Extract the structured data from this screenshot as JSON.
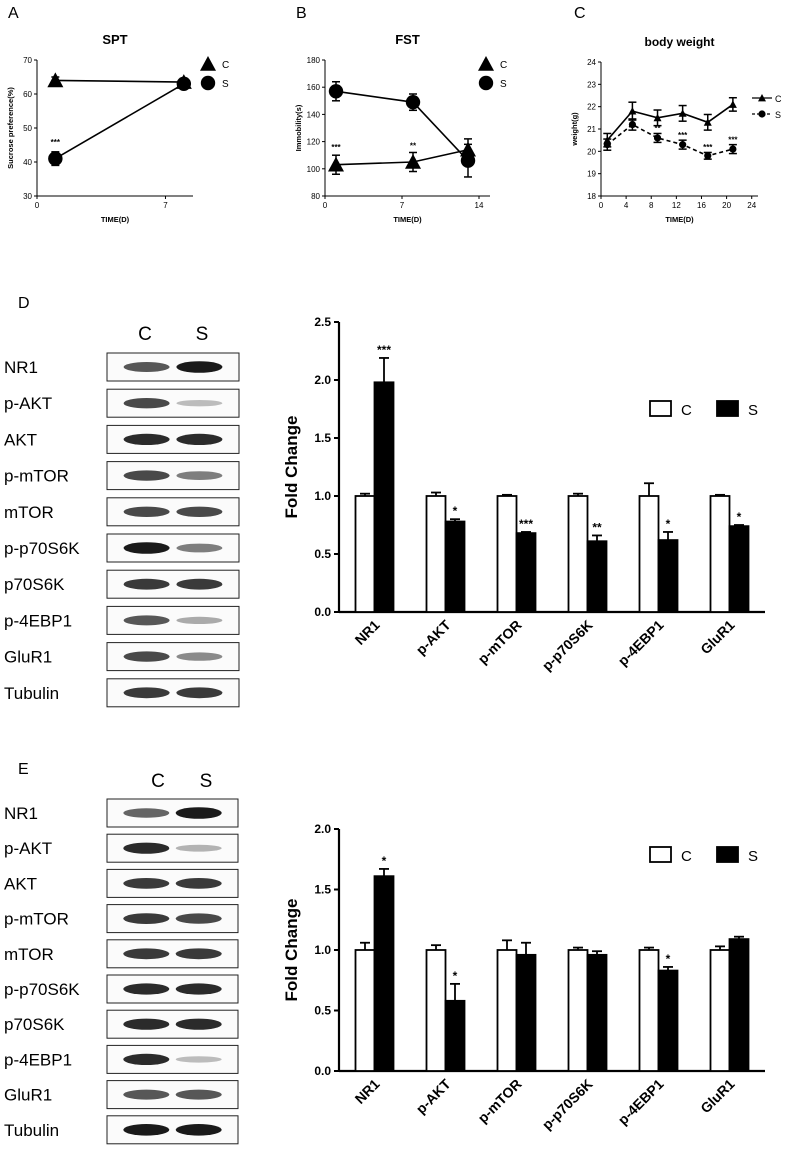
{
  "panel_letters": [
    "A",
    "B",
    "C",
    "D",
    "E"
  ],
  "chart_data": [
    {
      "id": "A",
      "type": "line",
      "title": "SPT",
      "xlabel": "TIME(D)",
      "ylabel": "Sucrose preference(%)",
      "xlim": [
        0,
        8.5
      ],
      "ylim": [
        30,
        70
      ],
      "xticks": [
        0,
        7
      ],
      "yticks": [
        30,
        40,
        50,
        60,
        70
      ],
      "legend": "top-right",
      "series": [
        {
          "name": "C",
          "marker": "triangle",
          "x": [
            1,
            8
          ],
          "y": [
            64,
            63.5
          ],
          "err": [
            1,
            1
          ]
        },
        {
          "name": "S",
          "marker": "circle",
          "x": [
            1,
            8
          ],
          "y": [
            41,
            63
          ],
          "err": [
            2,
            1
          ]
        }
      ],
      "annotations": [
        {
          "text": "***",
          "x": 1,
          "y": 45
        }
      ]
    },
    {
      "id": "B",
      "type": "line",
      "title": "FST",
      "xlabel": "TIME(D)",
      "ylabel": "Immobility(s)",
      "xlim": [
        0,
        15
      ],
      "ylim": [
        80,
        180
      ],
      "xticks": [
        0,
        7,
        14
      ],
      "yticks": [
        80,
        100,
        120,
        140,
        160,
        180
      ],
      "legend": "top-right",
      "series": [
        {
          "name": "C",
          "marker": "triangle",
          "x": [
            1,
            8,
            13
          ],
          "y": [
            103,
            105,
            114
          ],
          "err": [
            7,
            7,
            8
          ]
        },
        {
          "name": "S",
          "marker": "circle",
          "x": [
            1,
            8,
            13
          ],
          "y": [
            157,
            149,
            106
          ],
          "err": [
            7,
            6,
            12
          ]
        }
      ],
      "annotations": [
        {
          "text": "***",
          "x": 1,
          "y": 114
        },
        {
          "text": "**",
          "x": 8,
          "y": 115
        }
      ]
    },
    {
      "id": "C",
      "type": "line",
      "title": "body weight",
      "xlabel": "TIME(D)",
      "ylabel": "weight(g)",
      "xlim": [
        0,
        25
      ],
      "ylim": [
        18,
        24
      ],
      "xticks": [
        0,
        4,
        8,
        12,
        16,
        20,
        24
      ],
      "yticks": [
        18,
        19,
        20,
        21,
        22,
        23,
        24
      ],
      "legend": "top-right",
      "series": [
        {
          "name": "C",
          "marker": "triangle",
          "line": "solid",
          "x": [
            1,
            5,
            9,
            13,
            17,
            21
          ],
          "y": [
            20.5,
            21.8,
            21.5,
            21.7,
            21.3,
            22.1
          ],
          "err": [
            0.3,
            0.4,
            0.35,
            0.35,
            0.35,
            0.3
          ]
        },
        {
          "name": "S",
          "marker": "circle",
          "line": "dashed",
          "x": [
            1,
            5,
            9,
            13,
            17,
            21
          ],
          "y": [
            20.3,
            21.2,
            20.6,
            20.3,
            19.8,
            20.1
          ],
          "err": [
            0.25,
            0.25,
            0.2,
            0.2,
            0.15,
            0.2
          ]
        }
      ],
      "annotations": [
        {
          "text": "**",
          "x": 9,
          "y": 20.9
        },
        {
          "text": "***",
          "x": 13,
          "y": 20.6
        },
        {
          "text": "***",
          "x": 17,
          "y": 20.05
        },
        {
          "text": "***",
          "x": 21,
          "y": 20.4
        }
      ]
    },
    {
      "id": "D",
      "type": "bar",
      "ylabel": "Fold Change",
      "ylim": [
        0,
        2.5
      ],
      "yticks": [
        0.0,
        0.5,
        1.0,
        1.5,
        2.0,
        2.5
      ],
      "categories": [
        "NR1",
        "p-AKT",
        "p-mTOR",
        "p-p70S6K",
        "p-4EBP1",
        "GluR1"
      ],
      "legend": "top-right",
      "series": [
        {
          "name": "C",
          "fill": "#ffffff",
          "values": [
            1.0,
            1.0,
            1.0,
            1.0,
            1.0,
            1.0
          ],
          "err": [
            0.02,
            0.03,
            0.01,
            0.02,
            0.11,
            0.01
          ]
        },
        {
          "name": "S",
          "fill": "#000000",
          "values": [
            1.98,
            0.78,
            0.68,
            0.61,
            0.62,
            0.74
          ],
          "err": [
            0.21,
            0.02,
            0.01,
            0.05,
            0.07,
            0.01
          ]
        }
      ],
      "significance": [
        "***",
        "*",
        "***",
        "**",
        "*",
        "*"
      ]
    },
    {
      "id": "E",
      "type": "bar",
      "ylabel": "Fold Change",
      "ylim": [
        0,
        2.0
      ],
      "yticks": [
        0.0,
        0.5,
        1.0,
        1.5,
        2.0
      ],
      "categories": [
        "NR1",
        "p-AKT",
        "p-mTOR",
        "p-p70S6K",
        "p-4EBP1",
        "GluR1"
      ],
      "legend": "top-right",
      "series": [
        {
          "name": "C",
          "fill": "#ffffff",
          "values": [
            1.0,
            1.0,
            1.0,
            1.0,
            1.0,
            1.0
          ],
          "err": [
            0.06,
            0.04,
            0.08,
            0.02,
            0.02,
            0.03
          ]
        },
        {
          "name": "S",
          "fill": "#000000",
          "values": [
            1.61,
            0.58,
            0.96,
            0.96,
            0.83,
            1.09
          ],
          "err": [
            0.06,
            0.14,
            0.1,
            0.03,
            0.03,
            0.02
          ]
        }
      ],
      "significance": [
        "*",
        "*",
        "",
        "",
        "*",
        ""
      ]
    }
  ],
  "blots": [
    {
      "id": "D",
      "lanes": [
        "C",
        "S"
      ],
      "rows": [
        {
          "label": "NR1",
          "bands": [
            0.75,
            0.95
          ]
        },
        {
          "label": "p-AKT",
          "bands": [
            0.8,
            0.3
          ]
        },
        {
          "label": "AKT",
          "bands": [
            0.9,
            0.9
          ]
        },
        {
          "label": "p-mTOR",
          "bands": [
            0.8,
            0.6
          ]
        },
        {
          "label": "mTOR",
          "bands": [
            0.8,
            0.8
          ]
        },
        {
          "label": "p-p70S6K",
          "bands": [
            0.95,
            0.6
          ]
        },
        {
          "label": "p70S6K",
          "bands": [
            0.85,
            0.85
          ]
        },
        {
          "label": "p-4EBP1",
          "bands": [
            0.75,
            0.4
          ]
        },
        {
          "label": "GluR1",
          "bands": [
            0.8,
            0.55
          ]
        },
        {
          "label": "Tubulin",
          "bands": [
            0.85,
            0.85
          ]
        }
      ]
    },
    {
      "id": "E",
      "lanes": [
        "C",
        "S"
      ],
      "rows": [
        {
          "label": "NR1",
          "bands": [
            0.7,
            0.95
          ]
        },
        {
          "label": "p-AKT",
          "bands": [
            0.9,
            0.35
          ]
        },
        {
          "label": "AKT",
          "bands": [
            0.85,
            0.85
          ]
        },
        {
          "label": "p-mTOR",
          "bands": [
            0.85,
            0.8
          ]
        },
        {
          "label": "mTOR",
          "bands": [
            0.85,
            0.85
          ]
        },
        {
          "label": "p-p70S6K",
          "bands": [
            0.9,
            0.9
          ]
        },
        {
          "label": "p70S6K",
          "bands": [
            0.9,
            0.9
          ]
        },
        {
          "label": "p-4EBP1",
          "bands": [
            0.9,
            0.3
          ]
        },
        {
          "label": "GluR1",
          "bands": [
            0.75,
            0.75
          ]
        },
        {
          "label": "Tubulin",
          "bands": [
            0.95,
            0.95
          ]
        }
      ]
    }
  ]
}
